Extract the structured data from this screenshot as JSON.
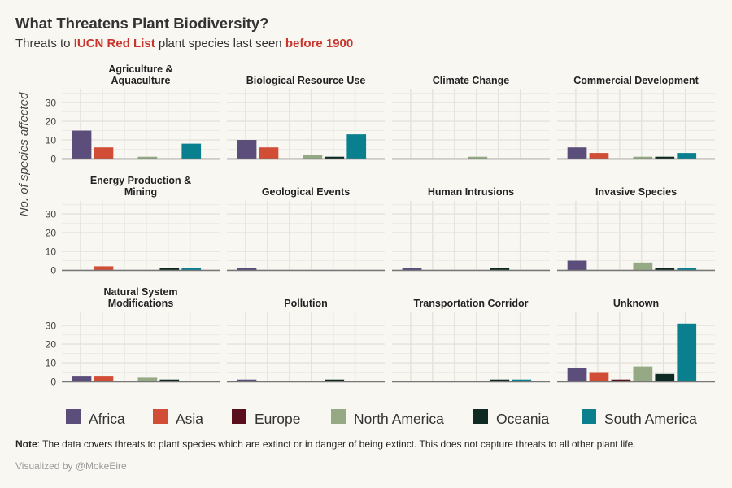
{
  "header": {
    "title": "What Threatens Plant Biodiversity?",
    "subtitle_prefix": "Threats to ",
    "subtitle_highlight1": "IUCN Red List",
    "subtitle_middle": " plant species last seen ",
    "subtitle_highlight2": "before 1900"
  },
  "footer": {
    "note_label": "Note",
    "note_text": ": The data covers threats to plant species which are extinct or in danger of being extinct. This does not capture threats to all other plant life.",
    "credit": "Visualized by @MokeEire"
  },
  "chart_data": {
    "type": "bar",
    "ylabel": "No. of species affected",
    "ylim": [
      0,
      37
    ],
    "yticks": [
      0,
      10,
      20,
      30
    ],
    "grid": true,
    "legend_position": "bottom",
    "series": [
      {
        "name": "Africa",
        "color": "#5b4e7a"
      },
      {
        "name": "Asia",
        "color": "#d24d36"
      },
      {
        "name": "Europe",
        "color": "#5a0f1c"
      },
      {
        "name": "North America",
        "color": "#94a984"
      },
      {
        "name": "Oceania",
        "color": "#0e2a22"
      },
      {
        "name": "South America",
        "color": "#0a808f"
      }
    ],
    "panels": [
      {
        "title": "Agriculture &\nAquaculture",
        "values": [
          15,
          6,
          0,
          1,
          0,
          8
        ]
      },
      {
        "title": "Biological Resource Use",
        "values": [
          10,
          6,
          0,
          2,
          1,
          13
        ]
      },
      {
        "title": "Climate Change",
        "values": [
          0,
          0,
          0,
          1,
          0,
          0
        ]
      },
      {
        "title": "Commercial Development",
        "values": [
          6,
          3,
          0,
          1,
          1,
          3
        ]
      },
      {
        "title": "Energy Production &\nMining",
        "values": [
          0,
          2,
          0,
          0,
          1,
          1
        ]
      },
      {
        "title": "Geological Events",
        "values": [
          1,
          0,
          0,
          0,
          0,
          0
        ]
      },
      {
        "title": "Human Intrusions",
        "values": [
          1,
          0,
          0,
          0,
          1,
          0
        ]
      },
      {
        "title": "Invasive Species",
        "values": [
          5,
          0,
          0,
          4,
          1,
          1
        ]
      },
      {
        "title": "Natural System\nModifications",
        "values": [
          3,
          3,
          0,
          2,
          1,
          0
        ]
      },
      {
        "title": "Pollution",
        "values": [
          1,
          0,
          0,
          0,
          1,
          0
        ]
      },
      {
        "title": "Transportation Corridor",
        "values": [
          0,
          0,
          0,
          0,
          1,
          1
        ]
      },
      {
        "title": "Unknown",
        "values": [
          7,
          5,
          1,
          8,
          4,
          31
        ]
      }
    ]
  }
}
